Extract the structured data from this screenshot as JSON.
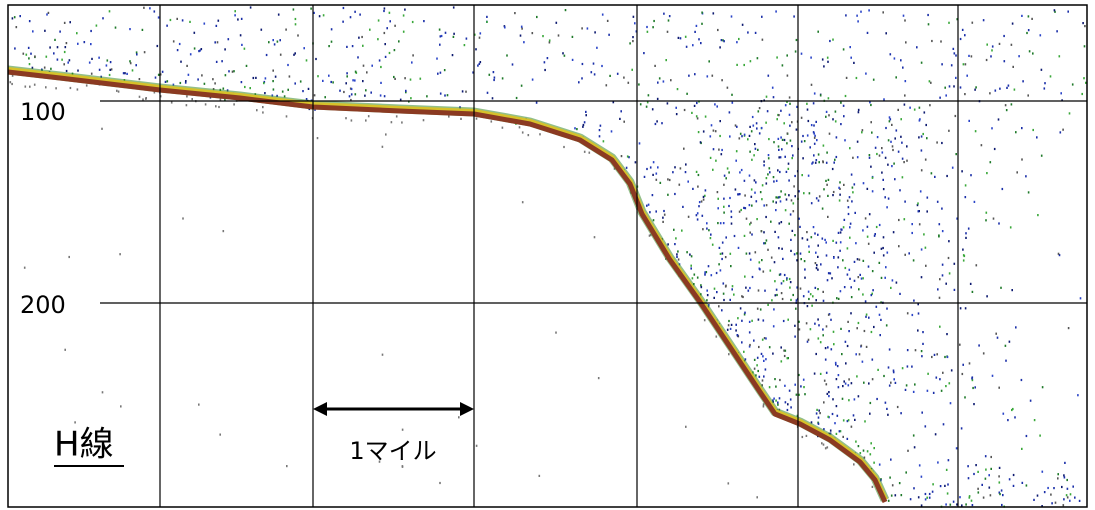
{
  "depth_ticks": [
    100,
    200
  ],
  "scale_label": "1マイル",
  "line_label": "H線"
}
